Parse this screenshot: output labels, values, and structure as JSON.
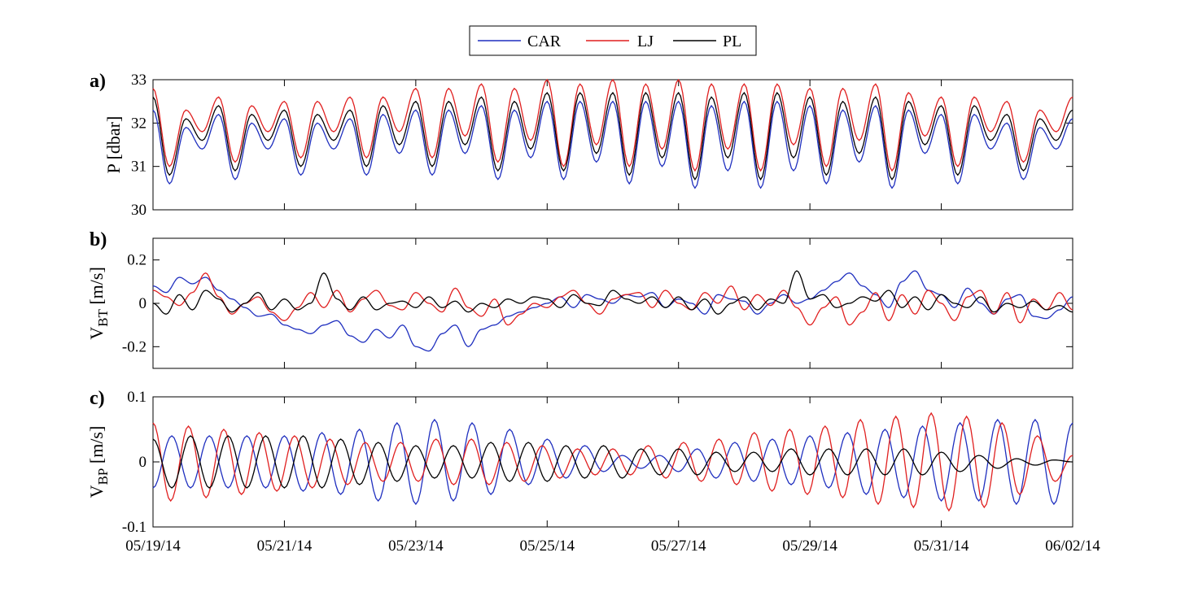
{
  "chart_data": {
    "x_ticks": [
      "05/19/14",
      "05/21/14",
      "05/23/14",
      "05/25/14",
      "05/27/14",
      "05/29/14",
      "05/31/14",
      "06/02/14"
    ],
    "xlim": [
      "05/19/14",
      "06/02/14"
    ],
    "legend": {
      "position": "top-center",
      "entries": [
        {
          "name": "CAR",
          "color": "#1f2fbf"
        },
        {
          "name": "LJ",
          "color": "#e01f1f"
        },
        {
          "name": "PL",
          "color": "#000000"
        }
      ]
    },
    "panels": [
      {
        "label": "a)",
        "type": "line",
        "ylabel_main": "P [dbar]",
        "ylabel_sub": "",
        "ylim": [
          30,
          33
        ],
        "yticks": [
          "30",
          "31",
          "32",
          "33"
        ],
        "ytick_values": [
          30,
          31,
          32,
          33
        ],
        "series": [
          {
            "name": "CAR",
            "color": "#1f2fbf",
            "values": [
              32.3,
              30.6,
              31.9,
              31.4,
              32.2,
              30.7,
              32.0,
              31.4,
              32.1,
              30.8,
              32.0,
              31.4,
              32.1,
              30.8,
              32.2,
              31.3,
              32.3,
              30.8,
              32.3,
              31.3,
              32.4,
              30.7,
              32.3,
              31.2,
              32.5,
              30.7,
              32.5,
              31.1,
              32.5,
              30.6,
              32.5,
              31.0,
              32.5,
              30.5,
              32.4,
              30.9,
              32.5,
              30.5,
              32.5,
              30.9,
              32.4,
              30.6,
              32.3,
              31.1,
              32.4,
              30.5,
              32.3,
              31.3,
              32.2,
              30.6,
              32.2,
              31.4,
              32.0,
              30.7,
              31.9,
              31.4,
              32.1
            ]
          },
          {
            "name": "LJ",
            "color": "#e01f1f",
            "values": [
              32.8,
              31.0,
              32.3,
              31.8,
              32.6,
              31.1,
              32.4,
              31.8,
              32.5,
              31.2,
              32.5,
              31.8,
              32.6,
              31.2,
              32.6,
              31.8,
              32.8,
              31.2,
              32.8,
              31.7,
              32.9,
              31.1,
              32.8,
              31.6,
              33.0,
              31.0,
              32.9,
              31.5,
              33.0,
              31.0,
              32.9,
              31.4,
              33.0,
              30.9,
              32.9,
              31.4,
              32.9,
              30.9,
              32.9,
              31.5,
              32.8,
              31.0,
              32.8,
              31.6,
              32.9,
              30.9,
              32.7,
              31.7,
              32.6,
              31.0,
              32.6,
              31.8,
              32.5,
              31.1,
              32.3,
              31.8,
              32.6
            ]
          },
          {
            "name": "PL",
            "color": "#000000",
            "values": [
              32.6,
              30.8,
              32.1,
              31.6,
              32.4,
              30.9,
              32.2,
              31.6,
              32.3,
              31.0,
              32.2,
              31.6,
              32.3,
              31.0,
              32.4,
              31.5,
              32.5,
              31.0,
              32.5,
              31.5,
              32.6,
              30.9,
              32.5,
              31.4,
              32.7,
              30.9,
              32.7,
              31.3,
              32.7,
              30.8,
              32.7,
              31.2,
              32.7,
              30.7,
              32.6,
              31.2,
              32.7,
              30.7,
              32.7,
              31.2,
              32.6,
              30.8,
              32.5,
              31.3,
              32.6,
              30.7,
              32.5,
              31.5,
              32.4,
              30.8,
              32.4,
              31.6,
              32.2,
              30.9,
              32.1,
              31.6,
              32.3
            ]
          }
        ]
      },
      {
        "label": "b)",
        "type": "line",
        "ylabel_main": "V",
        "ylabel_sub": "BT",
        "ylabel_unit": " [m/s]",
        "ylim": [
          -0.3,
          0.3
        ],
        "yticks": [
          "-0.2",
          "0",
          "0.2"
        ],
        "ytick_values": [
          -0.2,
          0,
          0.2
        ],
        "series": [
          {
            "name": "CAR",
            "color": "#1f2fbf",
            "values": [
              0.08,
              0.05,
              0.12,
              0.09,
              0.12,
              0.06,
              0.02,
              -0.02,
              -0.06,
              -0.05,
              -0.1,
              -0.12,
              -0.14,
              -0.1,
              -0.08,
              -0.15,
              -0.18,
              -0.12,
              -0.16,
              -0.1,
              -0.2,
              -0.22,
              -0.14,
              -0.1,
              -0.2,
              -0.12,
              -0.1,
              -0.06,
              -0.04,
              -0.02,
              0.0,
              0.03,
              -0.02,
              0.04,
              0.02,
              0.0,
              0.04,
              0.03,
              0.05,
              -0.02,
              0.02,
              0.0,
              -0.05,
              0.04,
              0.02,
              0.01,
              -0.05,
              0.0,
              0.04,
              0.0,
              0.02,
              0.06,
              0.1,
              0.14,
              0.08,
              0.04,
              -0.02,
              0.1,
              0.15,
              0.06,
              0.04,
              -0.02,
              0.07,
              0.0,
              -0.05,
              0.02,
              0.04,
              -0.06,
              -0.07,
              -0.03,
              0.03
            ]
          },
          {
            "name": "LJ",
            "color": "#e01f1f",
            "values": [
              0.06,
              0.03,
              -0.01,
              0.05,
              0.14,
              0.03,
              -0.05,
              0.0,
              0.03,
              -0.04,
              -0.08,
              -0.02,
              0.05,
              -0.02,
              0.06,
              -0.04,
              0.02,
              0.06,
              -0.01,
              -0.03,
              0.05,
              0.0,
              -0.04,
              0.07,
              -0.02,
              -0.06,
              0.02,
              -0.1,
              -0.05,
              0.0,
              -0.02,
              0.03,
              0.06,
              0.0,
              -0.05,
              0.02,
              0.04,
              0.05,
              -0.02,
              0.06,
              0.0,
              -0.03,
              0.05,
              0.0,
              0.08,
              -0.03,
              0.04,
              -0.01,
              0.06,
              -0.02,
              -0.1,
              -0.02,
              0.03,
              -0.1,
              -0.04,
              0.05,
              -0.08,
              0.04,
              -0.05,
              0.06,
              0.0,
              -0.08,
              0.03,
              0.06,
              -0.05,
              0.05,
              -0.09,
              0.02,
              -0.03,
              0.05,
              -0.03
            ]
          },
          {
            "name": "PL",
            "color": "#000000",
            "values": [
              0.0,
              -0.05,
              0.04,
              -0.03,
              0.06,
              0.02,
              -0.04,
              0.0,
              0.05,
              -0.03,
              0.02,
              -0.03,
              0.0,
              0.14,
              0.02,
              -0.03,
              0.03,
              -0.03,
              0.0,
              0.01,
              -0.02,
              0.03,
              -0.02,
              0.01,
              -0.04,
              0.0,
              -0.02,
              0.02,
              0.0,
              0.03,
              0.02,
              -0.02,
              0.04,
              0.0,
              -0.01,
              0.06,
              0.02,
              0.0,
              0.03,
              -0.02,
              0.03,
              -0.03,
              0.02,
              -0.05,
              0.0,
              0.03,
              -0.03,
              0.02,
              0.0,
              0.15,
              0.02,
              0.04,
              -0.02,
              0.0,
              0.03,
              0.01,
              0.06,
              -0.02,
              0.03,
              -0.03,
              0.04,
              0.0,
              -0.02,
              0.03,
              -0.04,
              0.0,
              -0.02,
              0.01,
              -0.03,
              -0.01,
              -0.04
            ]
          }
        ]
      },
      {
        "label": "c)",
        "type": "line",
        "ylabel_main": "V",
        "ylabel_sub": "BP",
        "ylabel_unit": " [m/s]",
        "ylim": [
          -0.1,
          0.1
        ],
        "yticks": [
          "-0.1",
          "0",
          "0.1"
        ],
        "ytick_values": [
          -0.1,
          0,
          0.1
        ],
        "series": [
          {
            "name": "CAR",
            "color": "#1f2fbf",
            "values": [
              -0.04,
              0.04,
              -0.04,
              0.04,
              -0.04,
              0.04,
              -0.04,
              0.04,
              -0.045,
              0.045,
              -0.05,
              0.05,
              -0.06,
              0.06,
              -0.065,
              0.065,
              -0.06,
              0.06,
              -0.05,
              0.05,
              -0.035,
              0.035,
              -0.025,
              0.025,
              -0.015,
              0.01,
              -0.01,
              0.01,
              -0.015,
              0.02,
              -0.025,
              0.03,
              -0.03,
              0.035,
              -0.035,
              0.04,
              -0.04,
              0.045,
              -0.05,
              0.05,
              -0.055,
              0.055,
              -0.06,
              0.06,
              -0.06,
              0.065,
              -0.065,
              0.065,
              -0.065,
              0.06
            ]
          },
          {
            "name": "LJ",
            "color": "#e01f1f",
            "values": [
              0.06,
              -0.06,
              0.055,
              -0.055,
              0.05,
              -0.05,
              0.045,
              -0.045,
              0.04,
              -0.04,
              0.035,
              -0.035,
              0.03,
              -0.03,
              0.03,
              -0.03,
              0.035,
              -0.035,
              0.035,
              -0.035,
              0.03,
              -0.03,
              0.025,
              -0.025,
              0.02,
              -0.02,
              0.02,
              -0.02,
              0.025,
              -0.025,
              0.03,
              -0.03,
              0.035,
              -0.035,
              0.045,
              -0.045,
              0.05,
              -0.05,
              0.055,
              -0.055,
              0.065,
              -0.065,
              0.07,
              -0.07,
              0.075,
              -0.075,
              0.07,
              -0.07,
              0.06,
              -0.05,
              0.04,
              -0.03,
              0.01
            ]
          },
          {
            "name": "PL",
            "color": "#000000",
            "values": [
              0.035,
              -0.04,
              0.04,
              -0.04,
              0.04,
              -0.04,
              0.04,
              -0.04,
              0.04,
              -0.04,
              0.035,
              -0.035,
              0.03,
              -0.03,
              0.025,
              -0.025,
              0.025,
              -0.025,
              0.03,
              -0.03,
              0.03,
              -0.03,
              0.025,
              -0.025,
              0.025,
              -0.025,
              0.02,
              -0.02,
              0.02,
              -0.02,
              0.015,
              -0.015,
              0.015,
              -0.015,
              0.02,
              -0.02,
              0.02,
              -0.02,
              0.02,
              -0.02,
              0.02,
              -0.02,
              0.015,
              -0.015,
              0.01,
              -0.01,
              0.005,
              -0.005,
              0.003,
              0.0
            ]
          }
        ]
      }
    ]
  }
}
